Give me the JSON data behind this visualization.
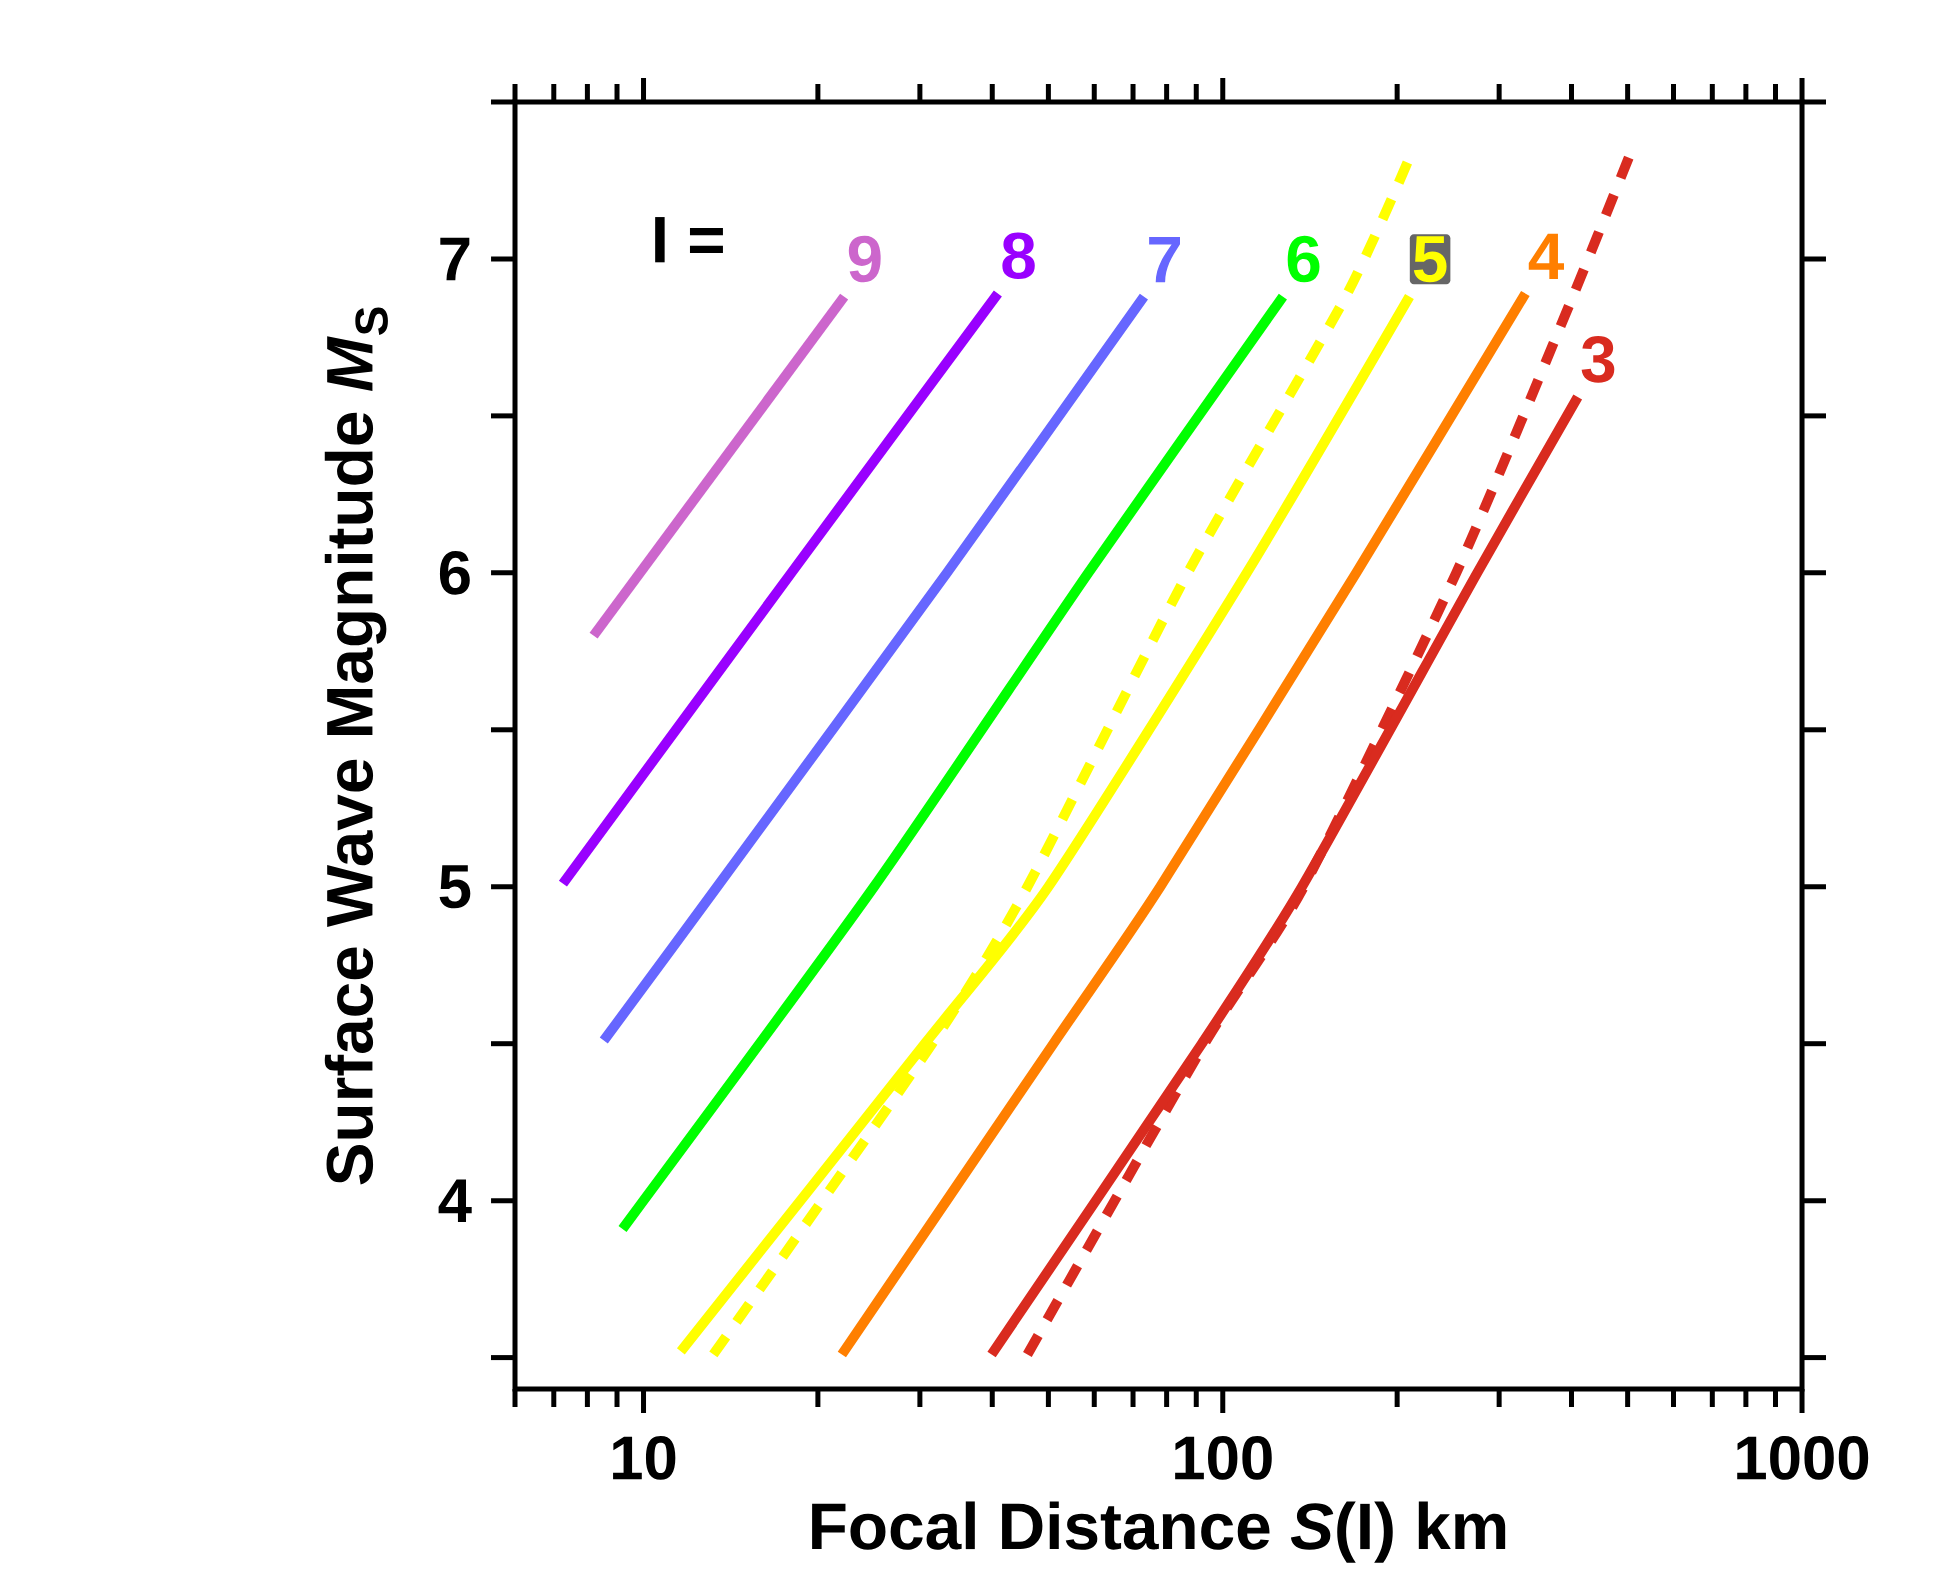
{
  "chart_data": {
    "type": "line",
    "xlabel": "Focal Distance *S*(I)  km",
    "ylabel": "Surface Wave Magnitude *M*$_{S}$",
    "log": "x",
    "xlim": [
      6,
      1000
    ],
    "ylim": [
      3.4,
      7.5
    ],
    "xticks": [
      10,
      100,
      1000
    ],
    "yticks": [
      4,
      5,
      6,
      7
    ],
    "annotations": [
      "I ="
    ],
    "series": [
      {
        "name": "9",
        "color": "#cc66cc",
        "x": [
          8.2,
          22.2
        ],
        "values": [
          5.8,
          6.88
        ]
      },
      {
        "name": "8",
        "color": "#9900ff",
        "x": [
          7.26,
          18,
          40.9
        ],
        "values": [
          5.01,
          6,
          6.89
        ]
      },
      {
        "name": "7",
        "color": "#6666ff",
        "x": [
          8.54,
          13.4,
          33.4,
          73.1
        ],
        "values": [
          4.51,
          5,
          6,
          6.88
        ]
      },
      {
        "name": "6",
        "color": "#00ff00",
        "x": [
          9.2,
          25,
          58.6,
          127
        ],
        "values": [
          3.91,
          5,
          6,
          6.88
        ]
      },
      {
        "color": "#ffff00",
        "line_style": "dotted",
        "x": [
          13.2,
          31.5,
          46,
          87,
          163,
          212
        ],
        "values": [
          3.51,
          4.5,
          5,
          6,
          6.88,
          7.34
        ]
      },
      {
        "name": "5",
        "color": "#ffff00",
        "x": [
          11.6,
          30.6,
          50,
          110,
          210
        ],
        "values": [
          3.52,
          4.5,
          5,
          6,
          6.88
        ]
      },
      {
        "name": "4",
        "color": "#ff7f00",
        "x": [
          22,
          51,
          78,
          170,
          333
        ],
        "values": [
          3.51,
          4.5,
          5,
          6,
          6.89
        ]
      },
      {
        "color": "#d92b1f",
        "line_style": "dotted",
        "x": [
          46,
          93,
          138,
          253,
          402,
          509
        ],
        "values": [
          3.51,
          4.5,
          5,
          6,
          6.88,
          7.35
        ]
      },
      {
        "name": "3",
        "color": "#d92b1f",
        "x": [
          39.9,
          92,
          137,
          275,
          410
        ],
        "values": [
          3.51,
          4.5,
          5,
          6,
          6.56
        ]
      }
    ]
  }
}
